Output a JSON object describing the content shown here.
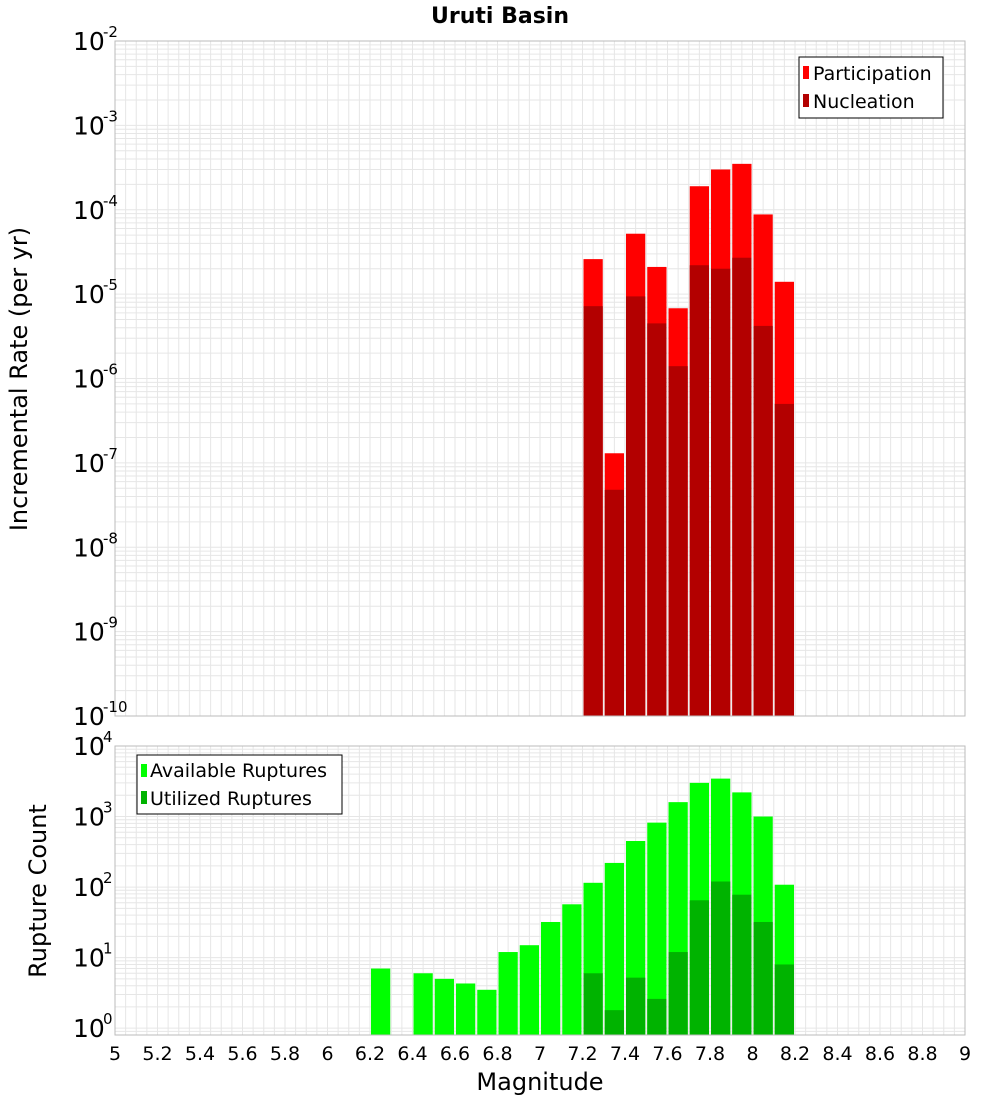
{
  "title": "Uruti Basin",
  "x_axis_label": "Magnitude",
  "x_ticks": [
    "5",
    "5.2",
    "5.4",
    "5.6",
    "5.8",
    "6",
    "6.2",
    "6.4",
    "6.6",
    "6.8",
    "7",
    "7.2",
    "7.4",
    "7.6",
    "7.8",
    "8",
    "8.2",
    "8.4",
    "8.6",
    "8.8",
    "9"
  ],
  "colors": {
    "participation": "#ff0000",
    "nucleation": "#b30000",
    "available": "#00ff00",
    "utilized": "#00b300",
    "grid": "#e6e6e6",
    "frame": "#bbbbbb"
  },
  "chart_data": [
    {
      "type": "bar",
      "xlim": [
        5,
        9
      ],
      "ylim": [
        1e-10,
        0.01
      ],
      "yscale": "log",
      "ylabel": "Incremental Rate (per yr)",
      "y_tick_exponents": [
        "-10",
        "-9",
        "-8",
        "-7",
        "-6",
        "-5",
        "-4",
        "-3",
        "-2"
      ],
      "legend": "top-right",
      "x": [
        7.25,
        7.35,
        7.45,
        7.55,
        7.65,
        7.75,
        7.85,
        7.95,
        8.05,
        8.15
      ],
      "series": [
        {
          "name": "Participation",
          "values": [
            2.6e-05,
            1.3e-07,
            5.2e-05,
            2.1e-05,
            6.8e-06,
            0.00019,
            0.0003,
            0.00035,
            8.8e-05,
            1.4e-05
          ]
        },
        {
          "name": "Nucleation",
          "values": [
            7.2e-06,
            4.8e-08,
            9.4e-06,
            4.5e-06,
            1.4e-06,
            2.2e-05,
            2e-05,
            2.7e-05,
            4.2e-06,
            5e-07
          ]
        }
      ]
    },
    {
      "type": "bar",
      "xlim": [
        5,
        9
      ],
      "ylim": [
        0.8,
        10000
      ],
      "yscale": "log",
      "ylabel": "Rupture Count",
      "y_tick_exponents": [
        "0",
        "1",
        "2",
        "3",
        "4"
      ],
      "legend": "top-left",
      "x": [
        6.25,
        6.45,
        6.55,
        6.65,
        6.75,
        6.85,
        6.95,
        7.05,
        7.15,
        7.25,
        7.35,
        7.45,
        7.55,
        7.65,
        7.75,
        7.85,
        7.95,
        8.05,
        8.15
      ],
      "series": [
        {
          "name": "Available Ruptures",
          "values": [
            7,
            6,
            5,
            4.3,
            3.5,
            12,
            15,
            32,
            57,
            115,
            220,
            450,
            820,
            1600,
            3000,
            3450,
            2200,
            1000,
            108
          ]
        },
        {
          "name": "Utilized Ruptures",
          "values": [
            0,
            0,
            0,
            0,
            0,
            0,
            0,
            0,
            0,
            6,
            1.8,
            5.2,
            2.6,
            12,
            65,
            120,
            78,
            32,
            8
          ]
        }
      ]
    }
  ]
}
